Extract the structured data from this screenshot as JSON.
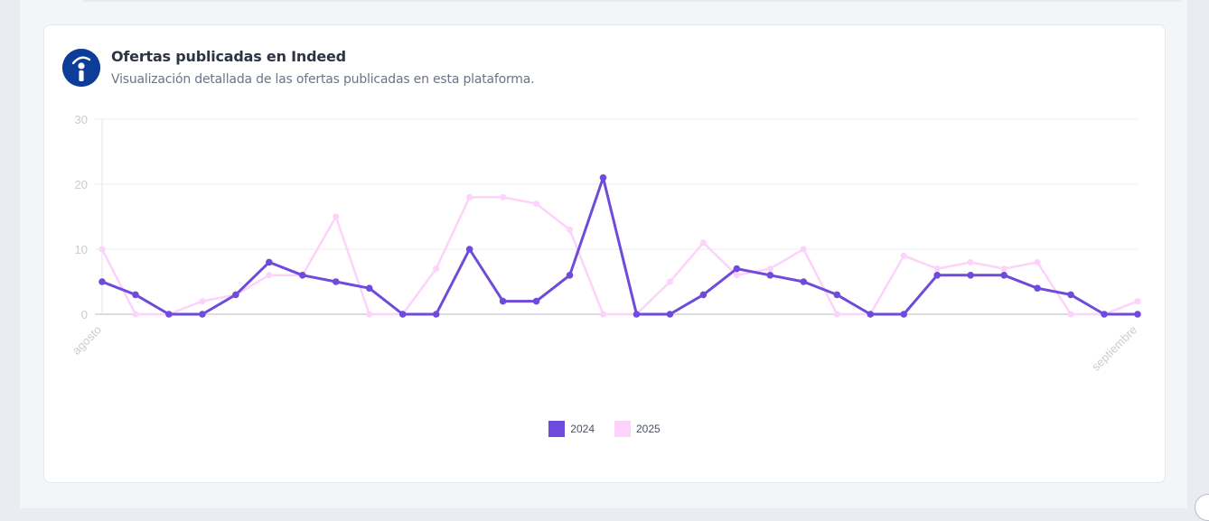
{
  "card": {
    "title": "Ofertas publicadas en Indeed",
    "subtitle": "Visualización detallada de las ofertas publicadas en esta plataforma.",
    "logo_icon": "indeed-logo-icon"
  },
  "legend": [
    {
      "label": "2024",
      "color": "#6f4bdb"
    },
    {
      "label": "2025",
      "color": "#fdd3fb"
    }
  ],
  "chart_data": {
    "type": "line",
    "title": "Ofertas publicadas en Indeed",
    "xlabel": "",
    "ylabel": "",
    "ylim": [
      0,
      30
    ],
    "yticks": [
      0,
      10,
      20,
      30
    ],
    "x_tick_labels": [
      {
        "index": 0,
        "label": "agosto"
      },
      {
        "index": 31,
        "label": "septiembre"
      }
    ],
    "grid": true,
    "legend_position": "bottom",
    "x": [
      0,
      1,
      2,
      3,
      4,
      5,
      6,
      7,
      8,
      9,
      10,
      11,
      12,
      13,
      14,
      15,
      16,
      17,
      18,
      19,
      20,
      21,
      22,
      23,
      24,
      25,
      26,
      27,
      28,
      29,
      30,
      31
    ],
    "series": [
      {
        "name": "2024",
        "color": "#6f4bdb",
        "values": [
          5,
          3,
          0,
          0,
          3,
          8,
          6,
          5,
          4,
          0,
          0,
          10,
          2,
          2,
          6,
          21,
          0,
          0,
          3,
          7,
          6,
          5,
          3,
          0,
          0,
          6,
          6,
          6,
          4,
          3,
          0,
          0
        ]
      },
      {
        "name": "2025",
        "color": "#fdd3fb",
        "values": [
          10,
          0,
          0,
          2,
          3,
          6,
          6,
          15,
          0,
          0,
          7,
          18,
          18,
          17,
          13,
          0,
          0,
          5,
          11,
          6,
          7,
          10,
          0,
          0,
          9,
          7,
          8,
          7,
          8,
          0,
          0,
          2
        ]
      }
    ]
  }
}
